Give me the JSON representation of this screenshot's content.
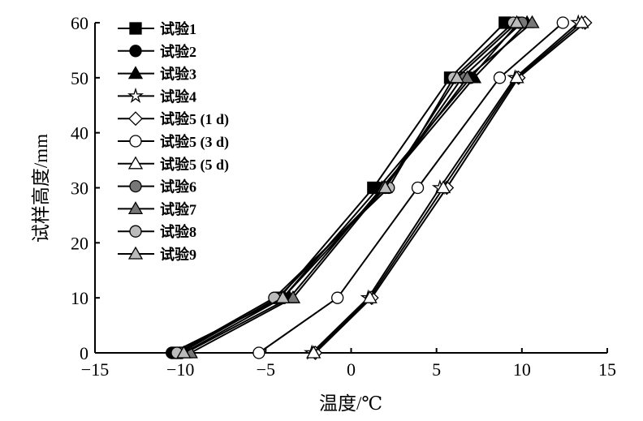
{
  "chart_data": {
    "type": "line",
    "title": "",
    "xlabel": "温度/℃",
    "ylabel": "试样高度/mm",
    "xlim": [
      -15,
      15
    ],
    "ylim": [
      0,
      60
    ],
    "xticks": [
      -15,
      -10,
      -5,
      0,
      5,
      10,
      15
    ],
    "yticks": [
      0,
      10,
      20,
      30,
      40,
      50,
      60
    ],
    "grid": false,
    "legend_position": "top-left",
    "y": [
      0,
      10,
      30,
      50,
      60
    ],
    "series": [
      {
        "name": "试验1",
        "marker": "square",
        "color": "#000000",
        "fill": "#000000",
        "x": [
          -10.2,
          -4.2,
          1.3,
          5.8,
          9.0
        ]
      },
      {
        "name": "试验2",
        "marker": "circle",
        "color": "#000000",
        "fill": "#000000",
        "x": [
          -10.5,
          -4.0,
          1.6,
          7.0,
          9.8
        ]
      },
      {
        "name": "试验3",
        "marker": "triangle",
        "color": "#000000",
        "fill": "#000000",
        "x": [
          -9.7,
          -3.6,
          1.8,
          7.2,
          10.3
        ]
      },
      {
        "name": "试验4",
        "marker": "star",
        "color": "#000000",
        "fill": "#ffffff",
        "x": [
          -2.3,
          1.0,
          5.2,
          9.6,
          13.3
        ]
      },
      {
        "name": "试验5 (1 d)",
        "marker": "diamond",
        "color": "#000000",
        "fill": "#ffffff",
        "x": [
          -2.1,
          1.2,
          5.6,
          9.8,
          13.7
        ]
      },
      {
        "name": "试验5 (3 d)",
        "marker": "circle",
        "color": "#000000",
        "fill": "#ffffff",
        "x": [
          -5.4,
          -0.8,
          3.9,
          8.7,
          12.4
        ]
      },
      {
        "name": "试验5 (5 d)",
        "marker": "triangle",
        "color": "#000000",
        "fill": "#ffffff",
        "x": [
          -2.2,
          1.1,
          5.4,
          9.7,
          13.5
        ]
      },
      {
        "name": "试验6",
        "marker": "circle",
        "color": "#000000",
        "fill": "#777777",
        "x": [
          -10.0,
          -4.3,
          2.0,
          6.5,
          10.0
        ]
      },
      {
        "name": "试验7",
        "marker": "triangle",
        "color": "#000000",
        "fill": "#777777",
        "x": [
          -9.4,
          -3.4,
          1.9,
          6.8,
          10.6
        ]
      },
      {
        "name": "试验8",
        "marker": "circle",
        "color": "#000000",
        "fill": "#bbbbbb",
        "x": [
          -10.2,
          -4.5,
          2.2,
          6.0,
          9.5
        ]
      },
      {
        "name": "试验9",
        "marker": "triangle",
        "color": "#000000",
        "fill": "#bbbbbb",
        "x": [
          -9.8,
          -4.0,
          2.0,
          6.2,
          9.7
        ]
      }
    ]
  }
}
